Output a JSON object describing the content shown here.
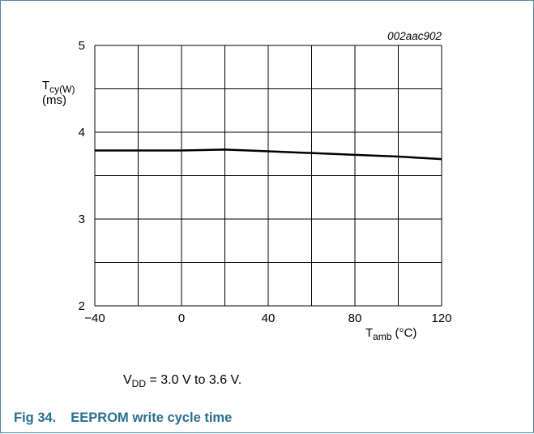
{
  "chart_data": {
    "type": "line",
    "figure_id": "002aac902",
    "ylabel_main": "T",
    "ylabel_sub": "cy(W)",
    "ylabel_unit": "(ms)",
    "xlabel_main": "T",
    "xlabel_sub": "amb",
    "xlabel_unit": "(°C)",
    "xlim": [
      -40,
      120
    ],
    "ylim": [
      2,
      5
    ],
    "x_ticks": [
      -40,
      0,
      40,
      80,
      120
    ],
    "x_tick_labels": [
      "−40",
      "0",
      "40",
      "80",
      "120"
    ],
    "y_ticks": [
      2,
      3,
      4,
      5
    ],
    "y_tick_labels": [
      "2",
      "3",
      "4",
      "5"
    ],
    "grid": true,
    "series": [
      {
        "x": [
          -40,
          -20,
          0,
          20,
          40,
          60,
          80,
          100,
          120
        ],
        "y": [
          3.79,
          3.79,
          3.79,
          3.8,
          3.78,
          3.76,
          3.74,
          3.72,
          3.69
        ]
      }
    ]
  },
  "note": {
    "prefix": "V",
    "sub": "DD",
    "text": " = 3.0 V to 3.6 V."
  },
  "caption": {
    "label": "Fig 34.",
    "title": "EEPROM write cycle time"
  },
  "colors": {
    "caption": "#2b6f8e",
    "frame": "#4a8a9a",
    "line": "#000000"
  }
}
